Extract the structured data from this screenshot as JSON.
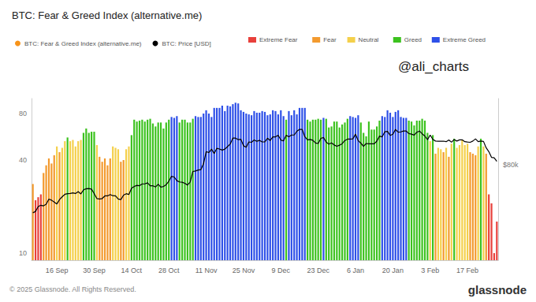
{
  "chart_data": {
    "type": "bar",
    "title": "BTC: Fear & Greed Index (alternative.me)",
    "categories": [
      null,
      null,
      null,
      null,
      null,
      null,
      null,
      null,
      null,
      "16 Sep",
      null,
      null,
      null,
      null,
      null,
      null,
      null,
      null,
      null,
      null,
      null,
      null,
      null,
      "30 Sep",
      null,
      null,
      null,
      null,
      null,
      null,
      null,
      null,
      null,
      null,
      null,
      null,
      null,
      "14 Oct",
      null,
      null,
      null,
      null,
      null,
      null,
      null,
      null,
      null,
      null,
      null,
      null,
      null,
      "28 Oct",
      null,
      null,
      null,
      null,
      null,
      null,
      null,
      null,
      null,
      null,
      null,
      null,
      null,
      "11 Nov",
      null,
      null,
      null,
      null,
      null,
      null,
      null,
      null,
      null,
      null,
      null,
      null,
      null,
      "25 Nov",
      null,
      null,
      null,
      null,
      null,
      null,
      null,
      null,
      null,
      null,
      null,
      null,
      null,
      "9 Dec",
      null,
      null,
      null,
      null,
      null,
      null,
      null,
      null,
      null,
      null,
      null,
      null,
      null,
      "23 Dec",
      null,
      null,
      null,
      null,
      null,
      null,
      null,
      null,
      null,
      null,
      null,
      null,
      null,
      "6 Jan",
      null,
      null,
      null,
      null,
      null,
      null,
      null,
      null,
      null,
      null,
      null,
      null,
      null,
      "20 Jan",
      null,
      null,
      null,
      null,
      null,
      null,
      null,
      null,
      null,
      null,
      null,
      null,
      null,
      "3 Feb",
      null,
      null,
      null,
      null,
      null,
      null,
      null,
      null,
      null,
      null,
      null,
      null,
      null,
      "17 Feb",
      null,
      null,
      null,
      null,
      null,
      null,
      null,
      null,
      null,
      null,
      null
    ],
    "series": [
      {
        "name": "BTC: Fear & Greed Index (alternative.me)",
        "type": "bar",
        "color": "#f7931a",
        "values": [
          28,
          22,
          23,
          24,
          33,
          37,
          41,
          38,
          43,
          49,
          45,
          48,
          53,
          56,
          53,
          54,
          49,
          53,
          54,
          60,
          64,
          60,
          61,
          61,
          50,
          42,
          39,
          41,
          37,
          41,
          49,
          48,
          47,
          39,
          40,
          47,
          49,
          58,
          73,
          71,
          72,
          73,
          71,
          73,
          74,
          69,
          66,
          70,
          70,
          64,
          70,
          73,
          76,
          75,
          77,
          70,
          73,
          73,
          70,
          70,
          74,
          77,
          76,
          76,
          80,
          84,
          80,
          76,
          87,
          87,
          87,
          90,
          83,
          90,
          89,
          92,
          94,
          93,
          84,
          82,
          80,
          79,
          78,
          83,
          81,
          81,
          83,
          82,
          78,
          79,
          84,
          83,
          79,
          84,
          77,
          73,
          83,
          78,
          84,
          79,
          87,
          87,
          87,
          73,
          71,
          73,
          73,
          74,
          73,
          75,
          74,
          65,
          66,
          71,
          71,
          65,
          68,
          70,
          74,
          77,
          76,
          75,
          78,
          70,
          60,
          57,
          71,
          63,
          63,
          66,
          72,
          77,
          76,
          84,
          81,
          76,
          82,
          84,
          76,
          75,
          75,
          72,
          71,
          67,
          72,
          72,
          74,
          72,
          60,
          53,
          58,
          44,
          48,
          47,
          45,
          48,
          42,
          51,
          55,
          48,
          50,
          54,
          50,
          51,
          45,
          44,
          43,
          49,
          55,
          49,
          44,
          24,
          21,
          10,
          16
        ],
        "colors": [
          "#f39a2e",
          "#e8403b",
          "#e8403b",
          "#e8403b",
          "#f39a2e",
          "#f39a2e",
          "#f39a2e",
          "#f39a2e",
          "#f39a2e",
          "#f4d04b",
          "#f39a2e",
          "#f4d04b",
          "#f4d04b",
          "#3cc21f",
          "#f4d04b",
          "#f4d04b",
          "#f4d04b",
          "#f4d04b",
          "#f4d04b",
          "#3cc21f",
          "#3cc21f",
          "#3cc21f",
          "#3cc21f",
          "#3cc21f",
          "#f4d04b",
          "#f39a2e",
          "#f39a2e",
          "#f39a2e",
          "#f39a2e",
          "#f39a2e",
          "#f4d04b",
          "#f4d04b",
          "#f4d04b",
          "#f39a2e",
          "#f39a2e",
          "#f4d04b",
          "#f4d04b",
          "#3cc21f",
          "#3cc21f",
          "#3cc21f",
          "#3cc21f",
          "#3cc21f",
          "#3cc21f",
          "#3cc21f",
          "#3cc21f",
          "#3cc21f",
          "#3cc21f",
          "#3cc21f",
          "#3cc21f",
          "#3cc21f",
          "#3cc21f",
          "#3cc21f",
          "#2e50e8",
          "#2e50e8",
          "#2e50e8",
          "#3cc21f",
          "#3cc21f",
          "#3cc21f",
          "#3cc21f",
          "#3cc21f",
          "#3cc21f",
          "#2e50e8",
          "#2e50e8",
          "#2e50e8",
          "#2e50e8",
          "#2e50e8",
          "#2e50e8",
          "#2e50e8",
          "#2e50e8",
          "#2e50e8",
          "#2e50e8",
          "#2e50e8",
          "#2e50e8",
          "#2e50e8",
          "#2e50e8",
          "#2e50e8",
          "#2e50e8",
          "#2e50e8",
          "#2e50e8",
          "#2e50e8",
          "#2e50e8",
          "#2e50e8",
          "#2e50e8",
          "#2e50e8",
          "#2e50e8",
          "#2e50e8",
          "#2e50e8",
          "#2e50e8",
          "#2e50e8",
          "#2e50e8",
          "#2e50e8",
          "#2e50e8",
          "#2e50e8",
          "#2e50e8",
          "#2e50e8",
          "#3cc21f",
          "#2e50e8",
          "#2e50e8",
          "#2e50e8",
          "#2e50e8",
          "#2e50e8",
          "#2e50e8",
          "#2e50e8",
          "#3cc21f",
          "#3cc21f",
          "#3cc21f",
          "#3cc21f",
          "#3cc21f",
          "#3cc21f",
          "#2e50e8",
          "#3cc21f",
          "#3cc21f",
          "#3cc21f",
          "#3cc21f",
          "#3cc21f",
          "#3cc21f",
          "#3cc21f",
          "#3cc21f",
          "#3cc21f",
          "#2e50e8",
          "#2e50e8",
          "#2e50e8",
          "#2e50e8",
          "#3cc21f",
          "#3cc21f",
          "#3cc21f",
          "#3cc21f",
          "#3cc21f",
          "#3cc21f",
          "#3cc21f",
          "#3cc21f",
          "#2e50e8",
          "#2e50e8",
          "#2e50e8",
          "#2e50e8",
          "#2e50e8",
          "#2e50e8",
          "#2e50e8",
          "#2e50e8",
          "#2e50e8",
          "#2e50e8",
          "#3cc21f",
          "#3cc21f",
          "#3cc21f",
          "#3cc21f",
          "#3cc21f",
          "#3cc21f",
          "#3cc21f",
          "#3cc21f",
          "#f4d04b",
          "#3cc21f",
          "#f39a2e",
          "#f4d04b",
          "#f4d04b",
          "#f39a2e",
          "#f4d04b",
          "#f39a2e",
          "#f4d04b",
          "#3cc21f",
          "#f4d04b",
          "#f4d04b",
          "#f4d04b",
          "#f4d04b",
          "#f4d04b",
          "#f39a2e",
          "#f39a2e",
          "#f39a2e",
          "#f4d04b",
          "#3cc21f",
          "#f4d04b",
          "#f39a2e",
          "#e8403b",
          "#e8403b",
          "#e8403b",
          "#e8403b"
        ]
      },
      {
        "name": "BTC: Price [USD]",
        "type": "line",
        "color": "#000000",
        "axis": "y2",
        "values": [
          54200,
          54800,
          57000,
          57600,
          57300,
          58100,
          60500,
          60000,
          59100,
          58200,
          60300,
          61700,
          62900,
          63200,
          63300,
          63600,
          63300,
          64300,
          63100,
          65200,
          65800,
          65900,
          65600,
          63300,
          60800,
          60600,
          60800,
          62100,
          62100,
          62800,
          62200,
          62100,
          60600,
          60300,
          62500,
          63200,
          62800,
          66000,
          67000,
          67600,
          67400,
          68400,
          68400,
          69000,
          67400,
          67400,
          66700,
          68200,
          66600,
          67000,
          68000,
          69900,
          72700,
          72300,
          70200,
          69500,
          69300,
          68700,
          67800,
          69400,
          75600,
          75900,
          76500,
          76700,
          80500,
          88700,
          88000,
          90500,
          87300,
          91100,
          90600,
          89800,
          90500,
          92300,
          94300,
          98900,
          98900,
          97700,
          98000,
          93000,
          91900,
          95900,
          95600,
          97500,
          96400,
          97200,
          95900,
          96000,
          98800,
          97000,
          99900,
          99900,
          101200,
          97400,
          96700,
          101200,
          100000,
          101400,
          101400,
          104500,
          106100,
          106100,
          100000,
          97500,
          97800,
          97200,
          95100,
          94700,
          98700,
          99400,
          95800,
          94200,
          95200,
          93600,
          92600,
          93400,
          94600,
          97000,
          98100,
          98200,
          98300,
          102100,
          96900,
          95000,
          92500,
          94700,
          94500,
          94500,
          94500,
          96500,
          100500,
          99900,
          104100,
          104400,
          101100,
          102000,
          106100,
          103700,
          104000,
          104700,
          104700,
          102600,
          102100,
          101300,
          103700,
          104700,
          102400,
          100600,
          97700,
          101400,
          97900,
          96600,
          96500,
          96500,
          96500,
          96100,
          97400,
          95700,
          97800,
          96600,
          97500,
          97600,
          96100,
          95800,
          95600,
          96600,
          98300,
          96100,
          96600,
          96300,
          91500,
          88700,
          84700,
          84400,
          82000
        ]
      }
    ],
    "ylim": [
      9,
      100
    ],
    "yticks": [
      10,
      40,
      80
    ],
    "y2lim": [
      37000,
      136000
    ],
    "y2ticks": [
      {
        "value": 80000,
        "label": "$80k"
      }
    ],
    "log": true,
    "grid": false,
    "legend": "top-left",
    "classification": [
      {
        "name": "Extreme Fear",
        "color": "#e8403b"
      },
      {
        "name": "Fear",
        "color": "#f39a2e"
      },
      {
        "name": "Neutral",
        "color": "#f4d04b"
      },
      {
        "name": "Greed",
        "color": "#3cc21f"
      },
      {
        "name": "Extreme Greed",
        "color": "#2e50e8"
      }
    ],
    "annotations": [
      {
        "text": "@ali_charts"
      },
      {
        "text": "© 2025 Glassnode. All Rights Reserved."
      },
      {
        "text": "glassnode"
      }
    ]
  }
}
